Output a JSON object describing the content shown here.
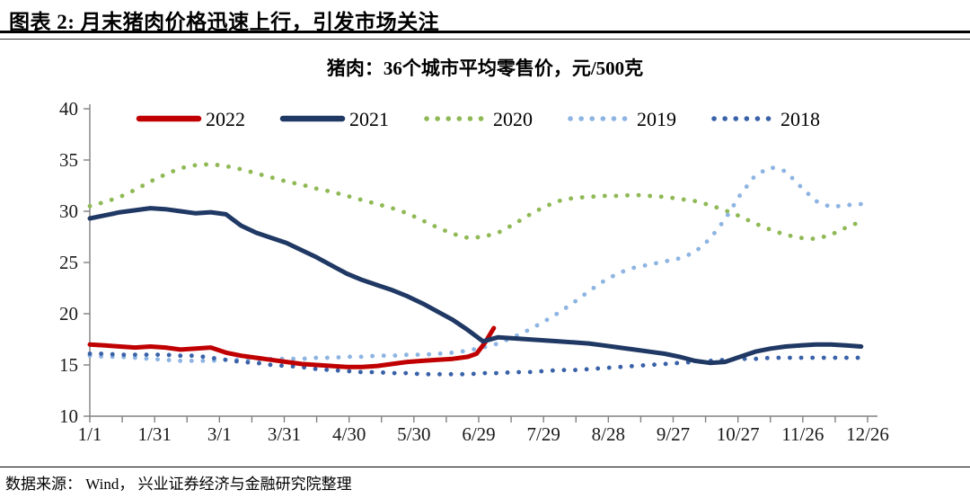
{
  "header": {
    "title": "图表 2:  月末猪肉价格迅速上行，引发市场关注"
  },
  "footer": {
    "source": "数据来源： Wind， 兴业证券经济与金融研究院整理"
  },
  "chart_data": {
    "type": "line",
    "title": "猪肉：36个城市平均零售价，元/500克",
    "xlabel": "",
    "ylabel": "",
    "ylim": [
      10,
      40
    ],
    "y_ticks": [
      10,
      15,
      20,
      25,
      30,
      35,
      40
    ],
    "x_tick_labels": [
      "1/1",
      "1/31",
      "3/1",
      "3/31",
      "4/30",
      "5/30",
      "6/29",
      "7/29",
      "8/28",
      "9/27",
      "10/27",
      "11/26",
      "12/26"
    ],
    "x_tick_days": [
      1,
      31,
      61,
      91,
      121,
      151,
      181,
      211,
      241,
      271,
      301,
      331,
      361
    ],
    "x_minor_tick_step_days": 15,
    "grid": false,
    "legend_position": "top-center-inside",
    "axis_color": "#808080",
    "series": [
      {
        "name": "2022",
        "color": "#C00000",
        "style": "solid",
        "days": [
          1,
          8,
          15,
          22,
          29,
          36,
          43,
          50,
          57,
          64,
          71,
          78,
          85,
          92,
          99,
          106,
          113,
          120,
          127,
          134,
          141,
          148,
          155,
          162,
          169,
          176,
          180,
          184,
          188
        ],
        "values": [
          17.0,
          16.9,
          16.8,
          16.7,
          16.8,
          16.7,
          16.5,
          16.6,
          16.7,
          16.2,
          15.9,
          15.7,
          15.5,
          15.3,
          15.1,
          15.0,
          14.9,
          14.8,
          14.8,
          14.9,
          15.1,
          15.3,
          15.4,
          15.5,
          15.6,
          15.8,
          16.1,
          17.2,
          18.6
        ]
      },
      {
        "name": "2021",
        "color": "#1F3864",
        "style": "solid",
        "days": [
          1,
          8,
          15,
          22,
          29,
          36,
          43,
          50,
          57,
          64,
          71,
          78,
          85,
          92,
          99,
          106,
          113,
          120,
          127,
          134,
          141,
          148,
          155,
          162,
          169,
          176,
          183,
          190,
          197,
          204,
          211,
          218,
          225,
          232,
          239,
          246,
          253,
          260,
          267,
          274,
          281,
          288,
          295,
          302,
          309,
          316,
          323,
          330,
          337,
          344,
          351,
          358
        ],
        "values": [
          29.3,
          29.6,
          29.9,
          30.1,
          30.3,
          30.2,
          30.0,
          29.8,
          29.9,
          29.7,
          28.6,
          27.9,
          27.4,
          26.9,
          26.2,
          25.5,
          24.7,
          23.9,
          23.3,
          22.8,
          22.3,
          21.7,
          21.0,
          20.2,
          19.4,
          18.4,
          17.3,
          17.7,
          17.6,
          17.5,
          17.4,
          17.3,
          17.2,
          17.1,
          16.9,
          16.7,
          16.5,
          16.3,
          16.1,
          15.8,
          15.4,
          15.2,
          15.3,
          15.8,
          16.3,
          16.6,
          16.8,
          16.9,
          17.0,
          17.0,
          16.9,
          16.8
        ]
      },
      {
        "name": "2020",
        "color": "#8FB954",
        "style": "dotted",
        "days": [
          1,
          8,
          15,
          22,
          29,
          36,
          43,
          50,
          57,
          64,
          71,
          78,
          85,
          92,
          99,
          106,
          113,
          120,
          127,
          134,
          141,
          148,
          155,
          162,
          169,
          176,
          183,
          190,
          197,
          204,
          211,
          218,
          225,
          232,
          239,
          246,
          253,
          260,
          267,
          274,
          281,
          288,
          295,
          302,
          309,
          316,
          323,
          330,
          337,
          344,
          351,
          358
        ],
        "values": [
          30.5,
          30.9,
          31.4,
          32.1,
          32.9,
          33.6,
          34.2,
          34.5,
          34.6,
          34.4,
          34.1,
          33.7,
          33.3,
          32.9,
          32.6,
          32.2,
          31.9,
          31.5,
          31.1,
          30.7,
          30.3,
          29.8,
          29.1,
          28.4,
          27.8,
          27.4,
          27.5,
          27.9,
          28.7,
          29.6,
          30.4,
          31.0,
          31.3,
          31.4,
          31.5,
          31.5,
          31.6,
          31.5,
          31.4,
          31.2,
          31.0,
          30.6,
          30.1,
          29.5,
          28.8,
          28.2,
          27.7,
          27.4,
          27.3,
          27.7,
          28.4,
          29.0
        ]
      },
      {
        "name": "2019",
        "color": "#8DB4E2",
        "style": "dotted",
        "days": [
          1,
          8,
          15,
          22,
          29,
          36,
          43,
          50,
          57,
          64,
          71,
          78,
          85,
          92,
          99,
          106,
          113,
          120,
          127,
          134,
          141,
          148,
          155,
          162,
          169,
          176,
          183,
          190,
          197,
          204,
          211,
          218,
          225,
          232,
          239,
          246,
          253,
          260,
          267,
          274,
          281,
          288,
          295,
          302,
          309,
          316,
          323,
          330,
          337,
          344,
          351,
          358
        ],
        "values": [
          15.9,
          15.8,
          15.8,
          15.7,
          15.6,
          15.5,
          15.4,
          15.4,
          15.4,
          15.5,
          15.5,
          15.5,
          15.6,
          15.6,
          15.6,
          15.7,
          15.7,
          15.8,
          15.8,
          15.9,
          15.9,
          16.0,
          16.0,
          16.1,
          16.2,
          16.4,
          16.7,
          17.1,
          17.7,
          18.4,
          19.2,
          20.1,
          21.1,
          22.2,
          23.2,
          24.0,
          24.5,
          24.8,
          25.1,
          25.4,
          26.0,
          27.3,
          29.2,
          31.6,
          33.5,
          34.3,
          33.9,
          32.4,
          31.0,
          30.4,
          30.6,
          30.7
        ]
      },
      {
        "name": "2018",
        "color": "#3A62A8",
        "style": "dotted",
        "days": [
          1,
          8,
          15,
          22,
          29,
          36,
          43,
          50,
          57,
          64,
          71,
          78,
          85,
          92,
          99,
          106,
          113,
          120,
          127,
          134,
          141,
          148,
          155,
          162,
          169,
          176,
          183,
          190,
          197,
          204,
          211,
          218,
          225,
          232,
          239,
          246,
          253,
          260,
          267,
          274,
          281,
          288,
          295,
          302,
          309,
          316,
          323,
          330,
          337,
          344,
          351,
          358
        ],
        "values": [
          16.1,
          16.1,
          16.0,
          16.0,
          16.0,
          16.0,
          15.9,
          15.9,
          15.7,
          15.5,
          15.3,
          15.2,
          15.0,
          14.9,
          14.8,
          14.6,
          14.5,
          14.4,
          14.3,
          14.3,
          14.2,
          14.2,
          14.1,
          14.1,
          14.1,
          14.1,
          14.2,
          14.2,
          14.3,
          14.3,
          14.4,
          14.5,
          14.5,
          14.6,
          14.7,
          14.8,
          14.9,
          15.0,
          15.1,
          15.2,
          15.3,
          15.4,
          15.5,
          15.6,
          15.6,
          15.7,
          15.7,
          15.7,
          15.7,
          15.7,
          15.7,
          15.7
        ]
      }
    ]
  }
}
